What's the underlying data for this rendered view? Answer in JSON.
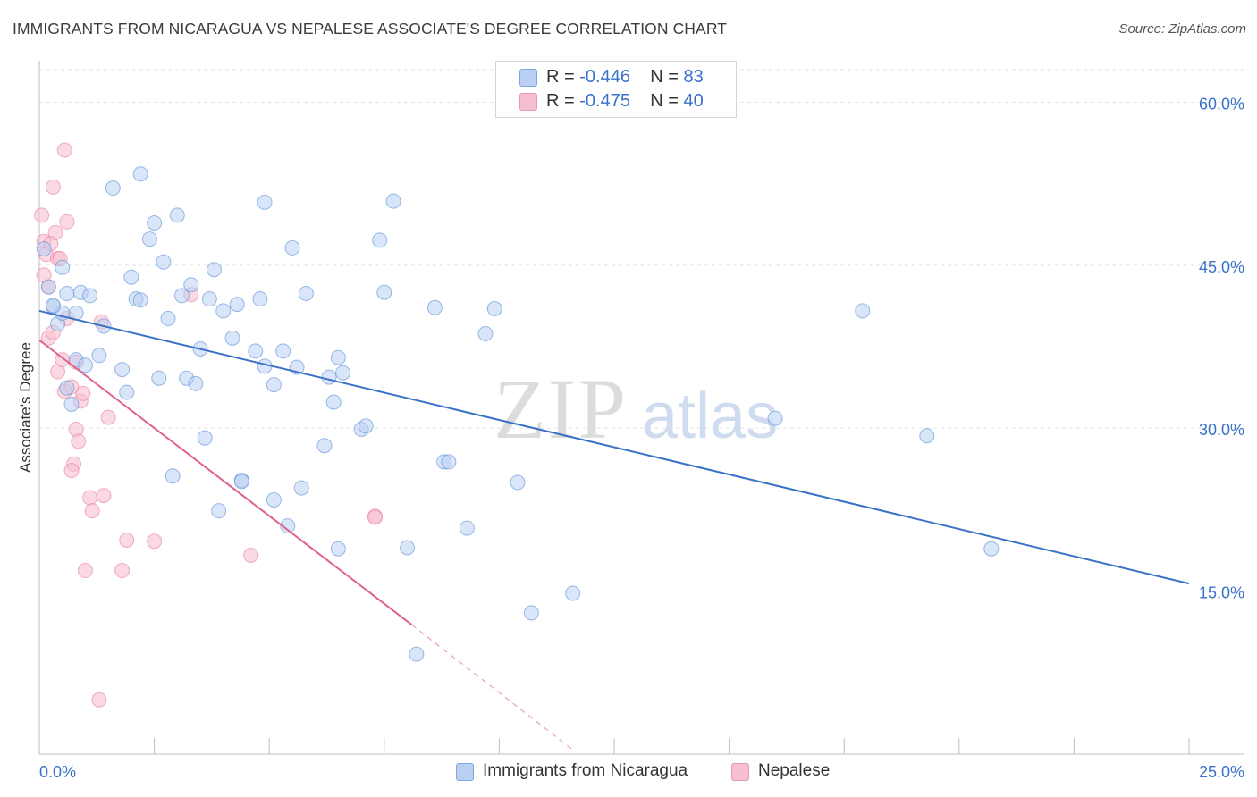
{
  "header": {
    "title": "IMMIGRANTS FROM NICARAGUA VS NEPALESE ASSOCIATE'S DEGREE CORRELATION CHART",
    "source": "Source: ZipAtlas.com"
  },
  "watermark": {
    "zip": "ZIP",
    "atlas": "atlas"
  },
  "legend": {
    "series": [
      {
        "r_label": "R = ",
        "r_value": "-0.446",
        "n_label": "N = ",
        "n_value": "83"
      },
      {
        "r_label": "R = ",
        "r_value": "-0.475",
        "n_label": "N = ",
        "n_value": "40"
      }
    ]
  },
  "chart_data": {
    "type": "scatter",
    "title": "IMMIGRANTS FROM NICARAGUA VS NEPALESE ASSOCIATE'S DEGREE CORRELATION CHART",
    "xlabel": "",
    "ylabel": "Associate's Degree",
    "xlim": [
      0,
      25
    ],
    "ylim": [
      0,
      63
    ],
    "x_tick_labels": [
      "0.0%",
      "25.0%"
    ],
    "y_ticks": [
      15,
      30,
      45,
      60
    ],
    "y_tick_labels": [
      "15.0%",
      "30.0%",
      "45.0%",
      "60.0%"
    ],
    "grid": true,
    "legend_position": "top-center and bottom",
    "colors": {
      "series1": "#5b8fd6",
      "series1_fill": "#b9d0f2",
      "series2": "#e8739a",
      "series2_fill": "#f6bfd1"
    },
    "series": [
      {
        "name": "Immigrants from Nicaragua",
        "r": -0.446,
        "n": 83,
        "trend": {
          "x": [
            0,
            25
          ],
          "y": [
            40.8,
            15.7
          ]
        },
        "points": [
          [
            0.1,
            46.5
          ],
          [
            0.2,
            43.0
          ],
          [
            0.3,
            41.2
          ],
          [
            0.4,
            39.6
          ],
          [
            0.5,
            40.6
          ],
          [
            0.5,
            44.8
          ],
          [
            0.6,
            42.4
          ],
          [
            0.6,
            33.7
          ],
          [
            0.7,
            32.2
          ],
          [
            0.8,
            40.6
          ],
          [
            0.8,
            36.3
          ],
          [
            0.9,
            42.5
          ],
          [
            1.0,
            35.8
          ],
          [
            1.1,
            42.2
          ],
          [
            1.3,
            36.7
          ],
          [
            1.4,
            39.4
          ],
          [
            1.6,
            52.1
          ],
          [
            1.8,
            35.4
          ],
          [
            1.9,
            33.3
          ],
          [
            2.0,
            43.9
          ],
          [
            2.1,
            41.9
          ],
          [
            2.2,
            41.8
          ],
          [
            2.2,
            53.4
          ],
          [
            2.4,
            47.4
          ],
          [
            2.5,
            48.9
          ],
          [
            2.6,
            34.6
          ],
          [
            2.7,
            45.3
          ],
          [
            2.8,
            40.1
          ],
          [
            2.9,
            25.6
          ],
          [
            3.0,
            49.6
          ],
          [
            3.1,
            42.2
          ],
          [
            3.2,
            34.6
          ],
          [
            3.3,
            43.2
          ],
          [
            3.4,
            34.1
          ],
          [
            3.5,
            37.3
          ],
          [
            3.6,
            29.1
          ],
          [
            3.7,
            41.9
          ],
          [
            3.8,
            44.6
          ],
          [
            3.9,
            22.4
          ],
          [
            4.0,
            40.8
          ],
          [
            4.2,
            38.3
          ],
          [
            4.3,
            41.4
          ],
          [
            4.4,
            25.2
          ],
          [
            4.4,
            25.1
          ],
          [
            4.7,
            37.1
          ],
          [
            4.8,
            41.9
          ],
          [
            4.9,
            35.7
          ],
          [
            4.9,
            50.8
          ],
          [
            5.1,
            23.4
          ],
          [
            5.1,
            34.0
          ],
          [
            5.3,
            37.1
          ],
          [
            5.4,
            21.0
          ],
          [
            5.5,
            46.6
          ],
          [
            5.6,
            35.6
          ],
          [
            5.7,
            24.5
          ],
          [
            5.8,
            42.4
          ],
          [
            6.2,
            28.4
          ],
          [
            6.3,
            34.7
          ],
          [
            6.4,
            32.4
          ],
          [
            6.5,
            36.5
          ],
          [
            6.5,
            18.9
          ],
          [
            6.6,
            35.1
          ],
          [
            7.0,
            29.9
          ],
          [
            7.1,
            30.2
          ],
          [
            7.4,
            47.3
          ],
          [
            7.5,
            42.5
          ],
          [
            7.7,
            50.9
          ],
          [
            8.0,
            19.0
          ],
          [
            8.2,
            9.2
          ],
          [
            8.6,
            41.1
          ],
          [
            8.8,
            26.9
          ],
          [
            8.9,
            26.9
          ],
          [
            9.3,
            20.8
          ],
          [
            9.7,
            38.7
          ],
          [
            9.9,
            41.0
          ],
          [
            10.4,
            25.0
          ],
          [
            10.7,
            13.0
          ],
          [
            11.6,
            14.8
          ],
          [
            16.0,
            30.9
          ],
          [
            17.9,
            40.8
          ],
          [
            19.3,
            29.3
          ],
          [
            20.7,
            18.9
          ],
          [
            0.3,
            41.3
          ]
        ]
      },
      {
        "name": "Nepalese",
        "r": -0.475,
        "n": 40,
        "trend": {
          "x": [
            0,
            8.1
          ],
          "y": [
            38.1,
            11.9
          ]
        },
        "trend_extension": {
          "x": [
            8.1,
            11.6
          ],
          "y": [
            11.9,
            0.4
          ]
        },
        "points": [
          [
            0.05,
            49.6
          ],
          [
            0.1,
            47.2
          ],
          [
            0.1,
            44.1
          ],
          [
            0.15,
            46.0
          ],
          [
            0.2,
            38.3
          ],
          [
            0.2,
            43.0
          ],
          [
            0.25,
            47.0
          ],
          [
            0.3,
            38.8
          ],
          [
            0.3,
            52.2
          ],
          [
            0.35,
            48.0
          ],
          [
            0.4,
            35.2
          ],
          [
            0.4,
            45.6
          ],
          [
            0.45,
            45.6
          ],
          [
            0.5,
            36.3
          ],
          [
            0.55,
            33.4
          ],
          [
            0.55,
            55.6
          ],
          [
            0.6,
            49.0
          ],
          [
            0.6,
            40.1
          ],
          [
            0.7,
            33.8
          ],
          [
            0.75,
            26.7
          ],
          [
            0.7,
            26.1
          ],
          [
            0.8,
            36.1
          ],
          [
            0.8,
            29.9
          ],
          [
            0.85,
            28.8
          ],
          [
            0.9,
            32.5
          ],
          [
            0.95,
            33.2
          ],
          [
            1.0,
            16.9
          ],
          [
            1.1,
            23.6
          ],
          [
            1.15,
            22.4
          ],
          [
            1.3,
            5.0
          ],
          [
            1.35,
            39.8
          ],
          [
            1.4,
            23.8
          ],
          [
            1.5,
            31.0
          ],
          [
            1.8,
            16.9
          ],
          [
            1.9,
            19.7
          ],
          [
            2.5,
            19.6
          ],
          [
            3.3,
            42.3
          ],
          [
            4.6,
            18.3
          ],
          [
            7.3,
            21.9
          ],
          [
            7.3,
            21.8
          ]
        ]
      }
    ]
  },
  "bottom_legend": {
    "items": [
      "Immigrants from Nicaragua",
      "Nepalese"
    ]
  }
}
